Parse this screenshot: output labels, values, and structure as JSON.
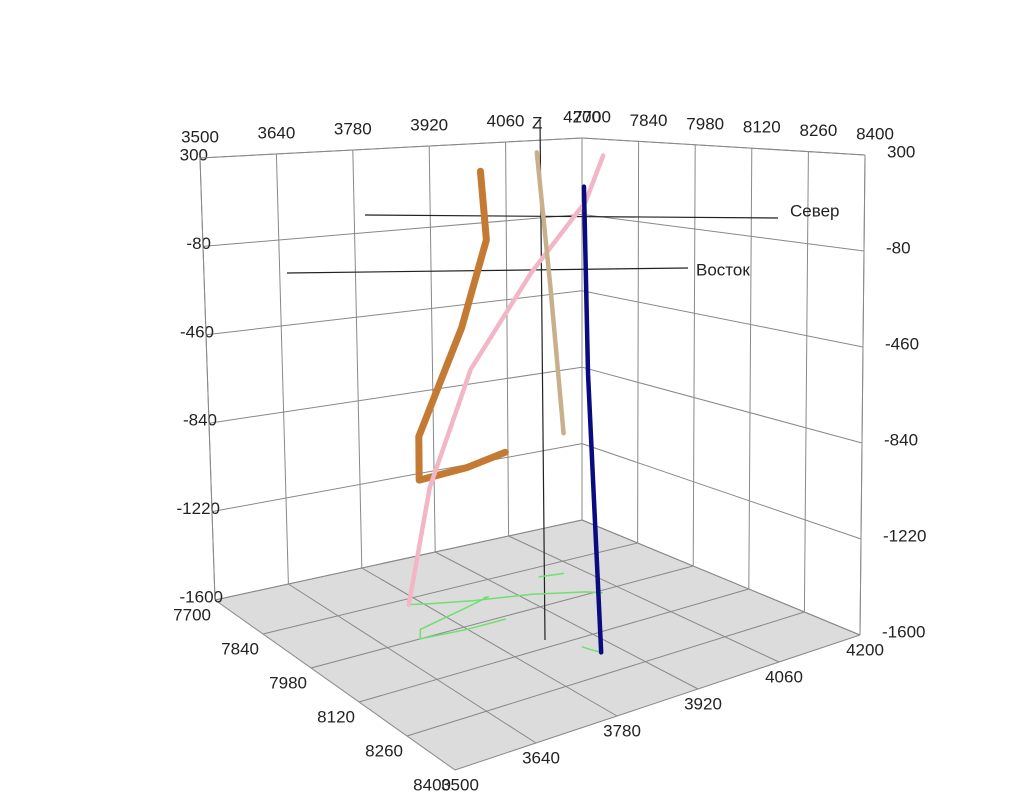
{
  "chart_data": {
    "type": "line3d",
    "xlabel": "Восток",
    "ylabel": "Север",
    "zlabel": "Z",
    "xlim": [
      3500,
      4200
    ],
    "xticks": [
      3500,
      3640,
      3780,
      3920,
      4060,
      4200
    ],
    "ylim": [
      7700,
      8400
    ],
    "yticks": [
      7700,
      7840,
      7980,
      8120,
      8260,
      8400
    ],
    "zlim": [
      -1600,
      300
    ],
    "zticks": [
      -1600,
      -1220,
      -840,
      -460,
      -80,
      300
    ],
    "grid": true,
    "floor_traces": true,
    "series": [
      {
        "color": "#c47a32",
        "x": [
          3870,
          3880,
          3820,
          3720,
          3700,
          3780,
          3850
        ],
        "y": [
          7900,
          7900,
          7920,
          7950,
          7980,
          7990,
          7990
        ],
        "z": [
          250,
          -50,
          -400,
          -800,
          -950,
          -930,
          -900
        ]
      },
      {
        "color": "#f2b6c6",
        "x": [
          4028,
          4010,
          3940,
          3850,
          3790,
          3759
        ],
        "y": [
          7989,
          7970,
          7930,
          7900,
          7875,
          7860
        ],
        "z": [
          300,
          100,
          -200,
          -600,
          -1100,
          -1600
        ]
      },
      {
        "color": "#c9b08c",
        "x": [
          3990,
          4010,
          4030
        ],
        "y": [
          7875,
          7880,
          7885
        ],
        "z": [
          300,
          -300,
          -970
        ]
      },
      {
        "color": "#0b0b80",
        "x": [
          3880,
          3882,
          3886,
          3890
        ],
        "y": [
          8150,
          8160,
          8175,
          8187
        ],
        "z": [
          250,
          -500,
          -1100,
          -1600
        ]
      }
    ]
  }
}
